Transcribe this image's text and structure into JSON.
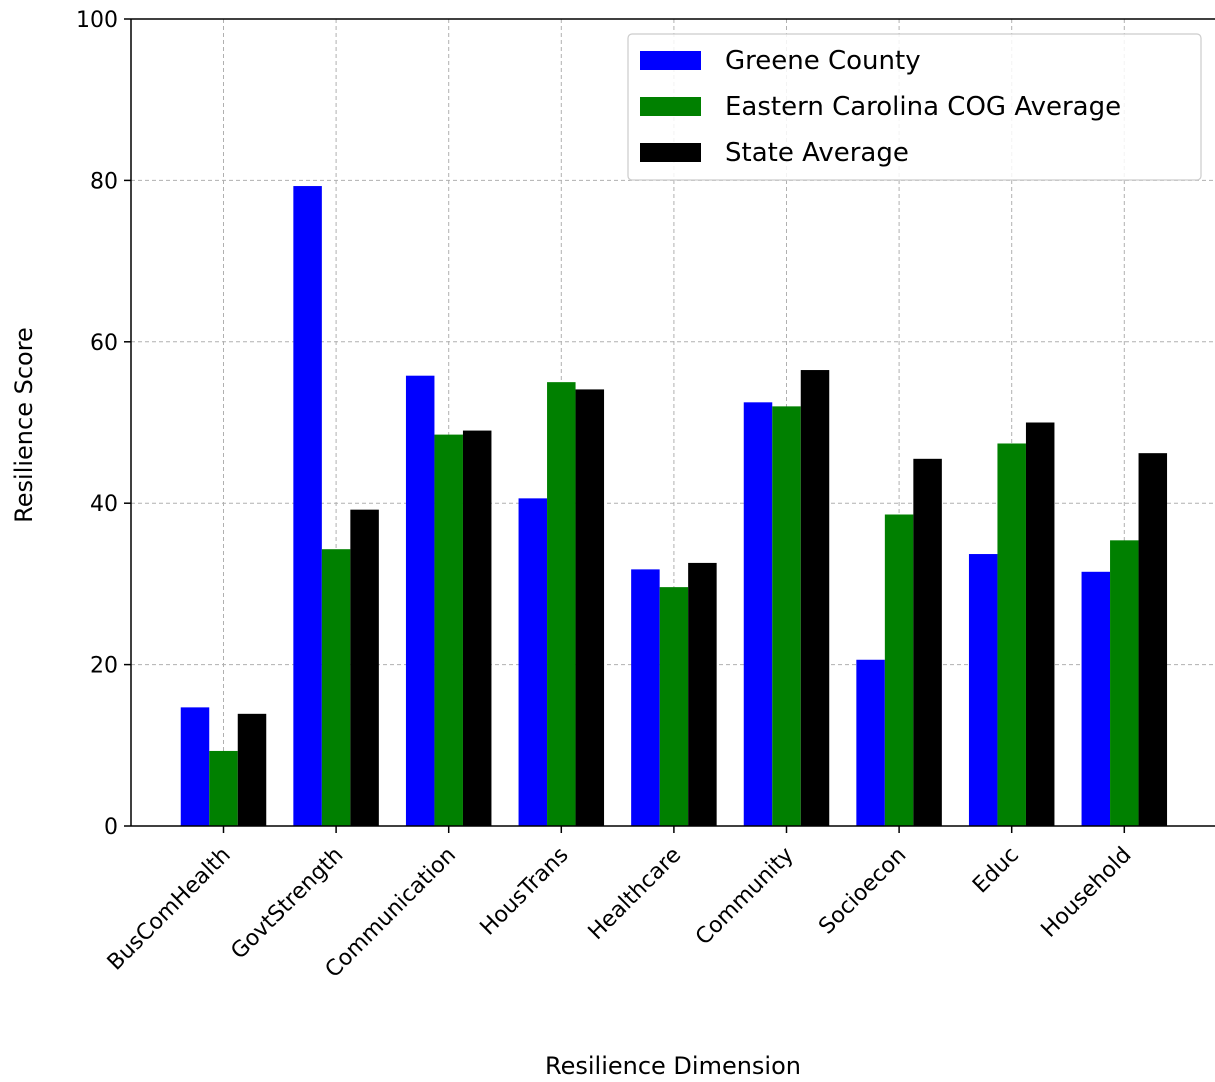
{
  "chart_data": {
    "type": "bar",
    "title": "",
    "xlabel": "Resilience Dimension",
    "ylabel": "Resilience Score",
    "ylim": [
      0,
      100
    ],
    "yticks": [
      0,
      20,
      40,
      60,
      80,
      100
    ],
    "grid": true,
    "legend_position": "top-right",
    "categories": [
      "BusComHealth",
      "GovtStrength",
      "Communication",
      "HousTrans",
      "Healthcare",
      "Community",
      "Socioecon",
      "Educ",
      "Household"
    ],
    "series": [
      {
        "name": "Greene County",
        "color": "#0000ff",
        "values": [
          14.7,
          79.3,
          55.8,
          40.6,
          31.8,
          52.5,
          20.6,
          33.7,
          31.5
        ]
      },
      {
        "name": "Eastern Carolina COG Average",
        "color": "#008000",
        "values": [
          9.3,
          34.3,
          48.5,
          55.0,
          29.6,
          52.0,
          38.6,
          47.4,
          35.4
        ]
      },
      {
        "name": "State Average",
        "color": "#000000",
        "values": [
          13.9,
          39.2,
          49.0,
          54.1,
          32.6,
          56.5,
          45.5,
          50.0,
          46.2
        ]
      }
    ]
  }
}
